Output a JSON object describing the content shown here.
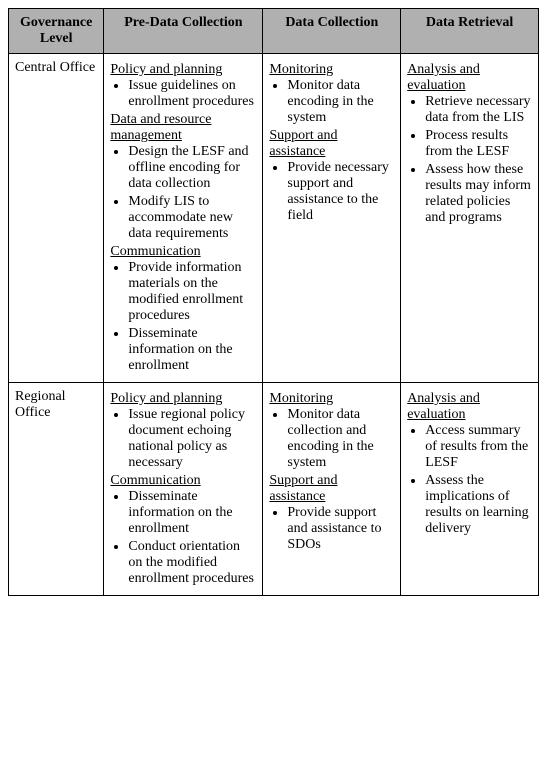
{
  "columns": [
    "Governance Level",
    "Pre-Data Collection",
    "Data Collection",
    "Data Retrieval"
  ],
  "rows": [
    {
      "gov": "Central Office",
      "pre": [
        {
          "head": "Policy and planning",
          "items": [
            "Issue guidelines on enrollment procedures"
          ]
        },
        {
          "head": "Data and resource management",
          "items": [
            "Design the LESF and offline encoding for data collection",
            "Modify LIS to accommodate new data requirements"
          ]
        },
        {
          "head": "Communication",
          "items": [
            "Provide information materials on the modified enrollment procedures",
            "Disseminate information on the enrollment"
          ]
        }
      ],
      "dc": [
        {
          "head": "Monitoring",
          "items": [
            "Monitor data encoding in the system"
          ]
        },
        {
          "head": "Support and assistance",
          "items": [
            "Provide necessary support and assistance to the field"
          ]
        }
      ],
      "dr": [
        {
          "head": "Analysis and evaluation",
          "items": [
            "Retrieve necessary data from the LIS",
            "Process results from the LESF",
            "Assess how these results may inform related policies and programs"
          ]
        }
      ]
    },
    {
      "gov": "Regional Office",
      "pre": [
        {
          "head": "Policy and planning",
          "items": [
            "Issue regional policy document echoing national policy as necessary"
          ]
        },
        {
          "head": "Communication",
          "items": [
            "Disseminate information on the enrollment",
            "Conduct orientation on the modified enrollment procedures"
          ]
        }
      ],
      "dc": [
        {
          "head": "Monitoring",
          "items": [
            "Monitor data collection and encoding in the system"
          ]
        },
        {
          "head": "Support and assistance",
          "items": [
            "Provide support and assistance to SDOs"
          ]
        }
      ],
      "dr": [
        {
          "head": "Analysis and evaluation",
          "items": [
            "Access summary of results from the LESF",
            "Assess the implications of results on learning delivery"
          ]
        }
      ]
    }
  ]
}
